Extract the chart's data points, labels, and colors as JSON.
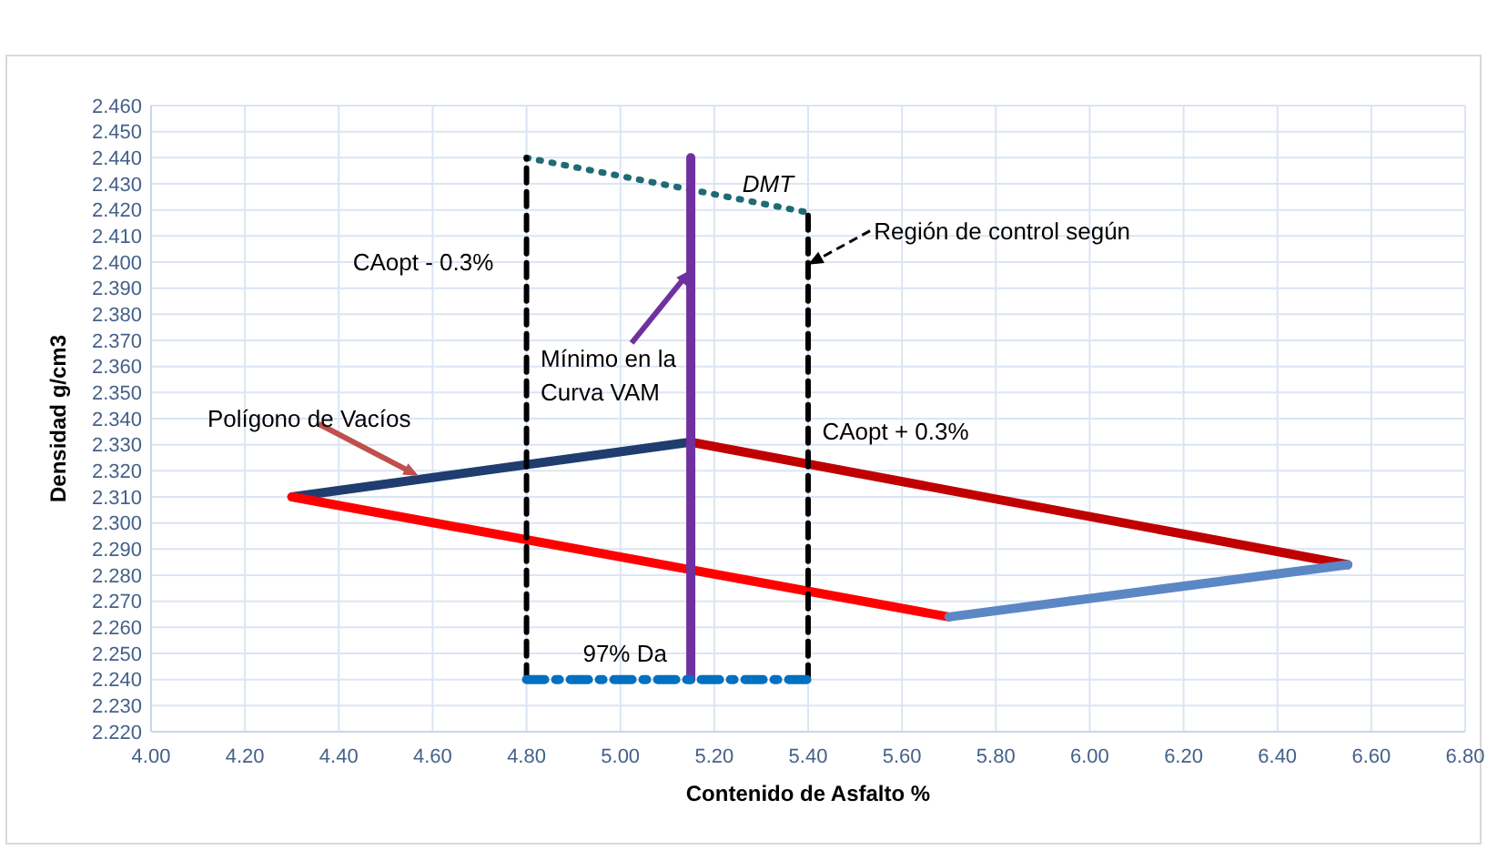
{
  "chart_data": {
    "type": "line",
    "xlabel": "Contenido de Asfalto %",
    "ylabel": "Densidad g/cm3",
    "xlim": [
      4.0,
      6.8
    ],
    "xticks": [
      {
        "value": 4.0,
        "label": "4.00"
      },
      {
        "value": 4.2,
        "label": "4.20"
      },
      {
        "value": 4.4,
        "label": "4.40"
      },
      {
        "value": 4.6,
        "label": "4.60"
      },
      {
        "value": 4.8,
        "label": "4.80"
      },
      {
        "value": 5.0,
        "label": "5.00"
      },
      {
        "value": 5.2,
        "label": "5.20"
      },
      {
        "value": 5.4,
        "label": "5.40"
      },
      {
        "value": 5.6,
        "label": "5.60"
      },
      {
        "value": 5.8,
        "label": "5.80"
      },
      {
        "value": 6.0,
        "label": "6.00"
      },
      {
        "value": 6.2,
        "label": "6.20"
      },
      {
        "value": 6.4,
        "label": "6.40"
      },
      {
        "value": 6.6,
        "label": "6.60"
      },
      {
        "value": 6.8,
        "label": "6.80"
      }
    ],
    "ylim": [
      2.22,
      2.46
    ],
    "yticks": [
      {
        "value": 2.22,
        "label": "2.220"
      },
      {
        "value": 2.23,
        "label": "2.230"
      },
      {
        "value": 2.24,
        "label": "2.240"
      },
      {
        "value": 2.25,
        "label": "2.250"
      },
      {
        "value": 2.26,
        "label": "2.260"
      },
      {
        "value": 2.27,
        "label": "2.270"
      },
      {
        "value": 2.28,
        "label": "2.280"
      },
      {
        "value": 2.29,
        "label": "2.290"
      },
      {
        "value": 2.3,
        "label": "2.300"
      },
      {
        "value": 2.31,
        "label": "2.310"
      },
      {
        "value": 2.32,
        "label": "2.320"
      },
      {
        "value": 2.33,
        "label": "2.330"
      },
      {
        "value": 2.34,
        "label": "2.340"
      },
      {
        "value": 2.35,
        "label": "2.350"
      },
      {
        "value": 2.36,
        "label": "2.360"
      },
      {
        "value": 2.37,
        "label": "2.370"
      },
      {
        "value": 2.38,
        "label": "2.380"
      },
      {
        "value": 2.39,
        "label": "2.390"
      },
      {
        "value": 2.4,
        "label": "2.400"
      },
      {
        "value": 2.41,
        "label": "2.410"
      },
      {
        "value": 2.42,
        "label": "2.420"
      },
      {
        "value": 2.43,
        "label": "2.430"
      },
      {
        "value": 2.44,
        "label": "2.440"
      },
      {
        "value": 2.45,
        "label": "2.450"
      },
      {
        "value": 2.46,
        "label": "2.460"
      }
    ],
    "grid": true,
    "marker": "none",
    "series": [
      {
        "color": "#1f3d6e",
        "x": [
          4.3,
          5.15
        ],
        "values": [
          2.31,
          2.331
        ],
        "line_style": "solid"
      },
      {
        "color": "#c00000",
        "x": [
          5.15,
          6.55
        ],
        "values": [
          2.331,
          2.284
        ],
        "line_style": "solid"
      },
      {
        "color": "#ff0000",
        "x": [
          4.3,
          5.7
        ],
        "values": [
          2.31,
          2.264
        ],
        "line_style": "solid"
      },
      {
        "color": "#5b87c5",
        "x": [
          5.7,
          6.55
        ],
        "values": [
          2.264,
          2.284
        ],
        "line_style": "solid"
      },
      {
        "color": "#1f6b75",
        "x": [
          4.8,
          5.4
        ],
        "values": [
          2.44,
          2.419
        ],
        "line_style": "dotted"
      },
      {
        "color": "#000000",
        "x": [
          4.8,
          4.8
        ],
        "values": [
          2.24,
          2.44
        ],
        "line_style": "dashed"
      },
      {
        "color": "#000000",
        "x": [
          5.4,
          5.4
        ],
        "values": [
          2.24,
          2.419
        ],
        "line_style": "dashed"
      },
      {
        "color": "#7030a0",
        "x": [
          5.15,
          5.15
        ],
        "values": [
          2.24,
          2.44
        ],
        "line_style": "solid"
      },
      {
        "color": "#0070c0",
        "x": [
          4.8,
          5.4
        ],
        "values": [
          2.24,
          2.24
        ],
        "line_style": "dashdot"
      }
    ],
    "annotations": [
      "DMT",
      "CAopt - 0.3%",
      {
        "text": "Región de control según",
        "x": 5.4,
        "y": 2.399
      },
      {
        "text": "Mínimo en la",
        "x": 5.15,
        "y": 2.397
      },
      "Curva VAM",
      {
        "text": "Polígono de Vacíos",
        "x": 4.57,
        "y": 2.318
      },
      "CAopt + 0.3%",
      "97% Da"
    ]
  }
}
